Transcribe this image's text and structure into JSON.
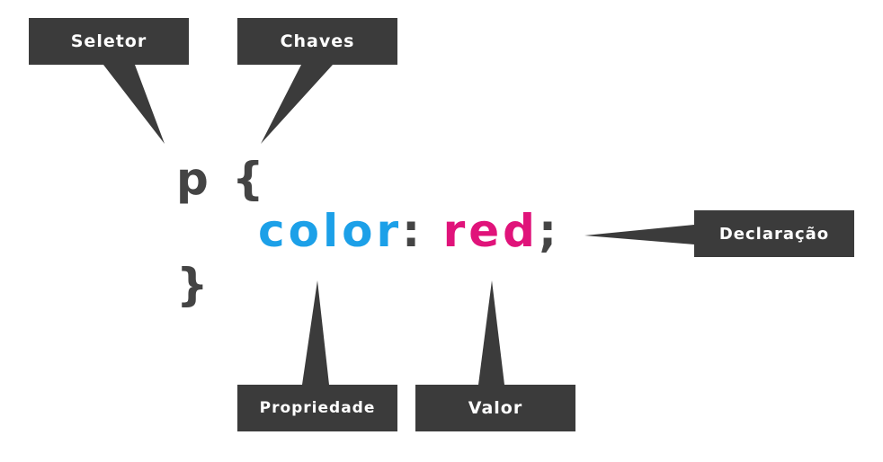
{
  "labels": {
    "selector": "Seletor",
    "braces": "Chaves",
    "declaration": "Declaração",
    "property": "Propriedade",
    "value": "Valor"
  },
  "code": {
    "selector": "p",
    "open_brace": "{",
    "property": "color",
    "colon": ":",
    "value": "red",
    "semicolon": ";",
    "close_brace": "}"
  },
  "colors": {
    "label_bg": "#3b3b3b",
    "label_text": "#ffffff",
    "code_text": "#444444",
    "property": "#1ca0e8",
    "value": "#e0137a"
  }
}
